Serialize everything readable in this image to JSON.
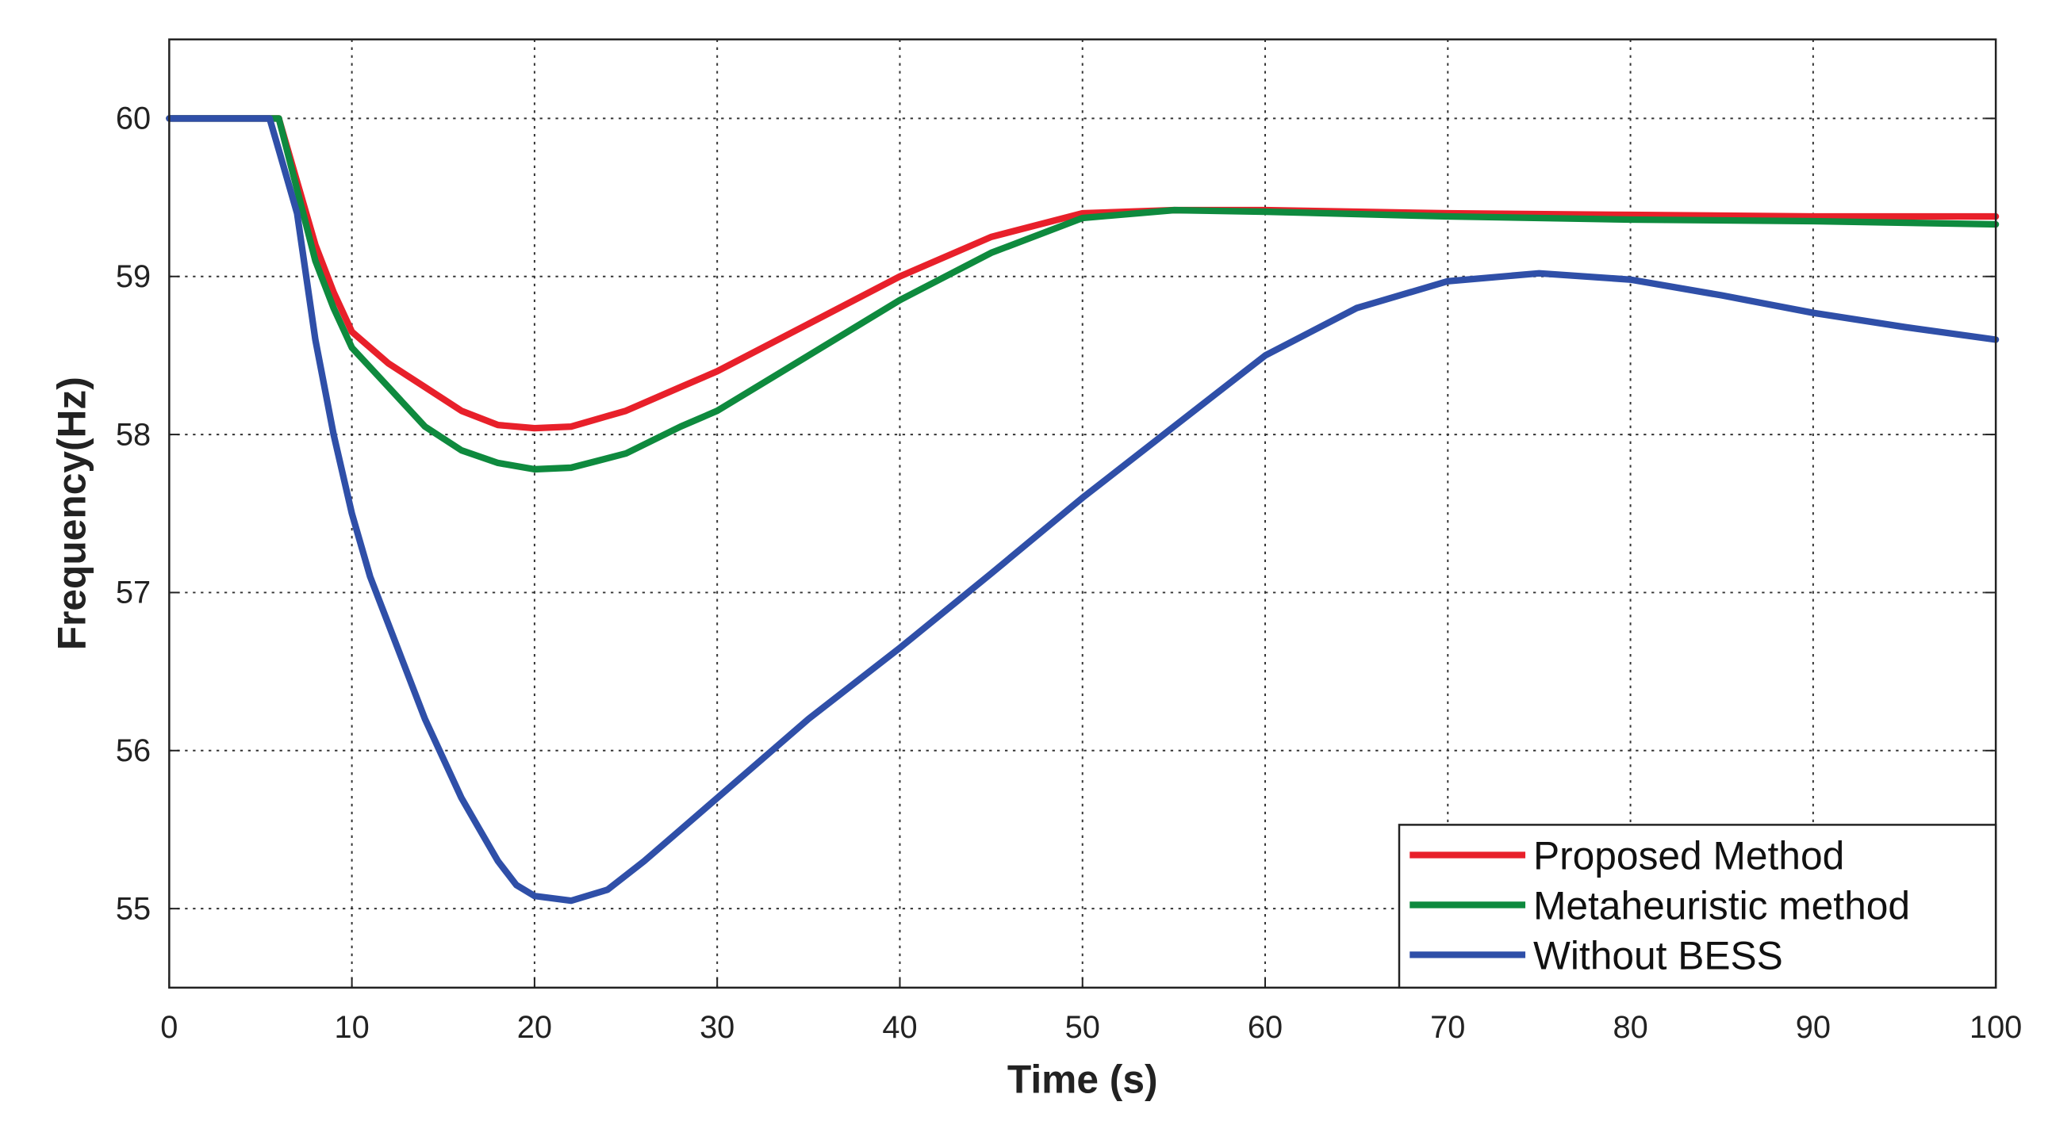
{
  "chart_data": {
    "type": "line",
    "title": "",
    "xlabel": "Time (s)",
    "ylabel": "Frequency(Hz)",
    "xlim": [
      0,
      100
    ],
    "ylim": [
      54.5,
      60.5
    ],
    "xticks": [
      0,
      10,
      20,
      30,
      40,
      50,
      60,
      70,
      80,
      90,
      100
    ],
    "yticks": [
      55,
      56,
      57,
      58,
      59,
      60
    ],
    "grid": true,
    "legend_position": "bottom-right",
    "series": [
      {
        "name": "Proposed Method",
        "color": "#e8202a",
        "x": [
          0,
          6,
          7,
          8,
          9,
          10,
          12,
          14,
          16,
          18,
          20,
          22,
          25,
          28,
          30,
          35,
          40,
          45,
          50,
          55,
          60,
          70,
          80,
          90,
          100
        ],
        "y": [
          60,
          60,
          59.6,
          59.2,
          58.9,
          58.65,
          58.45,
          58.3,
          58.15,
          58.06,
          58.04,
          58.05,
          58.15,
          58.3,
          58.4,
          58.7,
          59.0,
          59.25,
          59.4,
          59.42,
          59.42,
          59.4,
          59.39,
          59.38,
          59.38
        ]
      },
      {
        "name": "Metaheuristic method",
        "color": "#0e8a3e",
        "x": [
          0,
          6,
          7,
          8,
          9,
          10,
          12,
          14,
          16,
          18,
          20,
          22,
          25,
          28,
          30,
          35,
          40,
          45,
          50,
          55,
          60,
          70,
          80,
          90,
          100
        ],
        "y": [
          60,
          60,
          59.55,
          59.1,
          58.8,
          58.55,
          58.3,
          58.05,
          57.9,
          57.82,
          57.78,
          57.79,
          57.88,
          58.05,
          58.15,
          58.5,
          58.85,
          59.15,
          59.37,
          59.42,
          59.41,
          59.38,
          59.36,
          59.35,
          59.33
        ]
      },
      {
        "name": "Without BESS",
        "color": "#2f4fa8",
        "x": [
          0,
          5.5,
          6,
          7,
          8,
          9,
          10,
          11,
          12,
          13,
          14,
          15,
          16,
          17,
          18,
          19,
          20,
          22,
          24,
          26,
          28,
          30,
          35,
          40,
          45,
          50,
          55,
          60,
          65,
          70,
          75,
          80,
          85,
          90,
          95,
          100
        ],
        "y": [
          60,
          60,
          59.8,
          59.4,
          58.6,
          58.0,
          57.5,
          57.1,
          56.8,
          56.5,
          56.2,
          55.95,
          55.7,
          55.5,
          55.3,
          55.15,
          55.08,
          55.05,
          55.12,
          55.3,
          55.5,
          55.7,
          56.2,
          56.65,
          57.12,
          57.6,
          58.05,
          58.5,
          58.8,
          58.97,
          59.02,
          58.98,
          58.88,
          58.77,
          58.68,
          58.6
        ]
      }
    ]
  }
}
